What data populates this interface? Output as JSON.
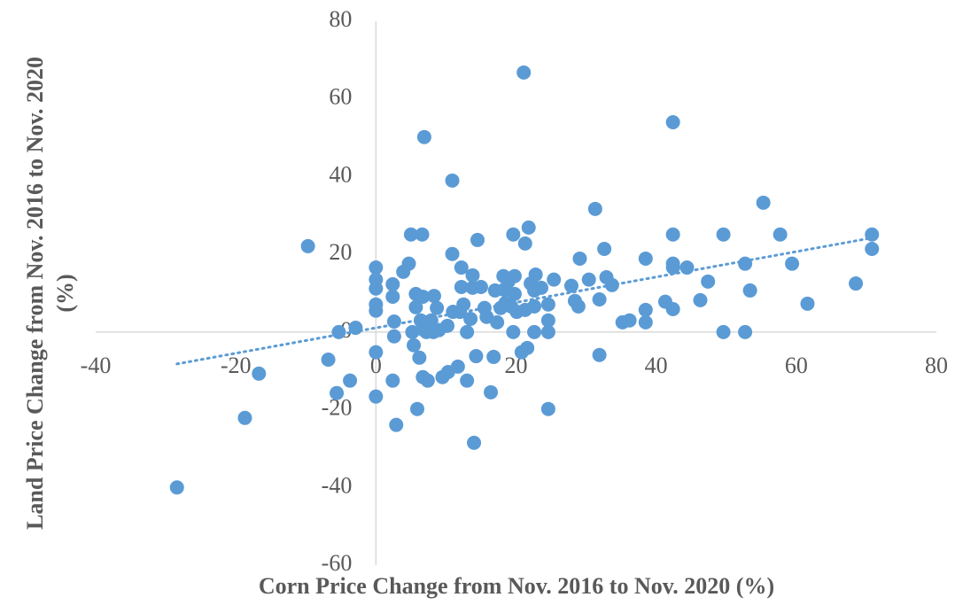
{
  "chart_data": {
    "type": "scatter",
    "x_label": "Corn Price Change from Nov. 2016 to Nov. 2020 (%)",
    "y_label": "Land Price Change from Nov. 2016 to Nov. 2020 (%)",
    "color": "#5b9bd5",
    "xlim": [
      -40,
      80
    ],
    "xticks": [
      -40,
      -20,
      0,
      20,
      40,
      60,
      80
    ],
    "ylim": [
      -60,
      80
    ],
    "yticks": [
      -60,
      -40,
      -20,
      0,
      20,
      40,
      60,
      80
    ],
    "x": [
      -28.4,
      -18.7,
      -16.7,
      -9.7,
      -6.8,
      -5.6,
      -5.3,
      -3.7,
      -2.9,
      0,
      0,
      0,
      0,
      0,
      0,
      0,
      2.4,
      2.4,
      2.6,
      2.6,
      2.4,
      2.9,
      3.9,
      4.7,
      5.0,
      5.2,
      5.4,
      5.7,
      5.7,
      5.9,
      6.2,
      6.4,
      6.6,
      6.7,
      6.7,
      6.7,
      6.9,
      7.2,
      7.4,
      7.9,
      8.2,
      8.3,
      8.7,
      9.0,
      9.5,
      10.2,
      10.3,
      10.9,
      10.9,
      11.0,
      11.7,
      12.0,
      12.2,
      12.2,
      12.5,
      13.0,
      13.0,
      13.5,
      13.8,
      13.8,
      14.0,
      14.3,
      14.5,
      15.0,
      15.5,
      15.8,
      16.4,
      16.8,
      17.0,
      17.3,
      17.8,
      18.2,
      18.3,
      18.5,
      18.9,
      19.3,
      19.6,
      19.6,
      19.8,
      19.8,
      20.1,
      20.8,
      21.1,
      21.3,
      21.3,
      21.6,
      21.8,
      22.1,
      22.6,
      22.6,
      22.6,
      22.8,
      23.6,
      24.6,
      24.6,
      24.6,
      24.6,
      25.4,
      27.9,
      28.4,
      28.9,
      29.1,
      30.4,
      31.3,
      31.9,
      31.9,
      32.6,
      32.9,
      33.7,
      35.2,
      36.2,
      38.5,
      38.5,
      38.5,
      41.3,
      42.4,
      42.4,
      42.4,
      42.4,
      42.4,
      44.4,
      46.3,
      47.4,
      49.6,
      49.6,
      52.7,
      52.7,
      53.4,
      55.3,
      57.7,
      59.4,
      61.6,
      68.5,
      70.8,
      70.8
    ],
    "values": [
      -40,
      -22.1,
      -10.7,
      22.1,
      -7.1,
      -15.7,
      0,
      -12.5,
      1.1,
      16.6,
      13.5,
      11.2,
      7.1,
      5.5,
      -5.2,
      -16.6,
      12.3,
      9.1,
      2.7,
      -1.1,
      -12.5,
      -23.9,
      15.5,
      17.6,
      25.1,
      0,
      -3.4,
      9.8,
      6.4,
      -19.8,
      -6.6,
      3.0,
      25.1,
      9.1,
      0.7,
      -11.6,
      50.2,
      0,
      -12.5,
      3.0,
      0,
      9.3,
      6.2,
      0.5,
      -11.6,
      1.6,
      -10.3,
      39.0,
      20.1,
      5.2,
      -8.9,
      5.2,
      16.6,
      11.6,
      7.1,
      0,
      -12.5,
      3.4,
      14.6,
      11.4,
      -28.5,
      -6.2,
      23.7,
      11.6,
      6.2,
      3.9,
      -15.5,
      -6.4,
      10.7,
      2.5,
      6.2,
      14.4,
      10.9,
      7.5,
      13.0,
      6.6,
      25.1,
      0,
      14.4,
      9.8,
      5.2,
      -5.2,
      66.8,
      22.8,
      5.7,
      -4.1,
      26.9,
      12.5,
      10.7,
      6.6,
      0,
      14.8,
      11.4,
      0,
      3.0,
      7.1,
      -19.8,
      13.5,
      11.9,
      8.0,
      6.6,
      18.9,
      13.5,
      31.7,
      8.4,
      -5.9,
      21.4,
      14.1,
      12.1,
      2.5,
      3.0,
      18.9,
      5.7,
      2.5,
      7.8,
      54.0,
      25.1,
      17.6,
      16.6,
      5.9,
      16.6,
      8.2,
      13.0,
      25.1,
      0,
      17.6,
      0,
      10.7,
      33.3,
      25.1,
      17.6,
      7.3,
      12.5,
      25.1,
      21.4
    ],
    "trendline": {
      "x": [
        -28.4,
        71.3
      ],
      "y": [
        -8.2,
        24.4
      ]
    }
  }
}
